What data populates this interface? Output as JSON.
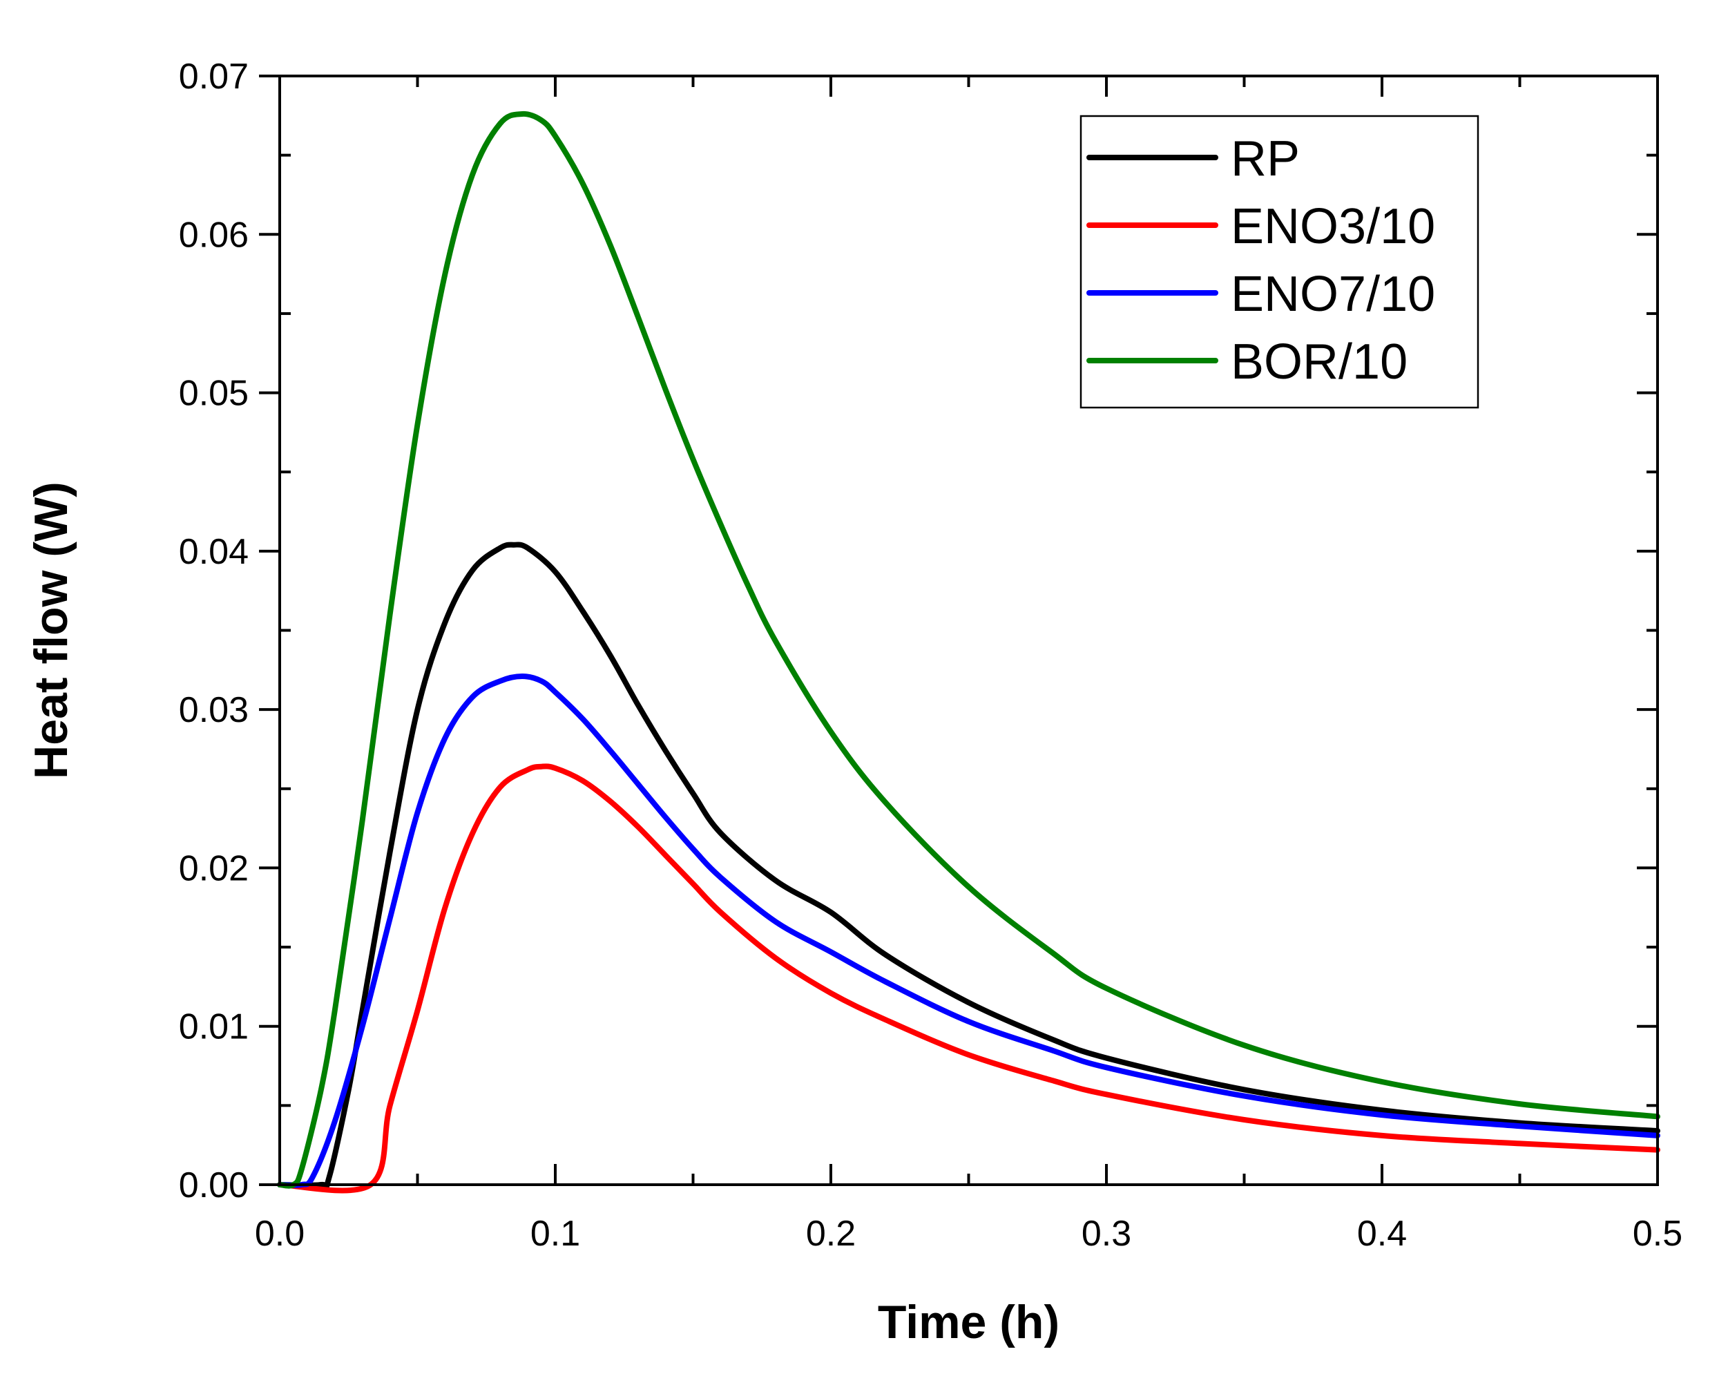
{
  "chart_data": {
    "type": "line",
    "title": "",
    "xlabel": "Time (h)",
    "ylabel": "Heat flow (W)",
    "xlim": [
      0,
      0.5
    ],
    "ylim": [
      0,
      0.07
    ],
    "x_ticks": [
      0.0,
      0.1,
      0.2,
      0.3,
      0.4,
      0.5
    ],
    "x_tick_labels": [
      "0.0",
      "0.1",
      "0.2",
      "0.3",
      "0.4",
      "0.5"
    ],
    "y_ticks": [
      0,
      0.01,
      0.02,
      0.03,
      0.04,
      0.05,
      0.06,
      0.07
    ],
    "y_tick_labels": [
      "0.00",
      "0.01",
      "0.02",
      "0.03",
      "0.04",
      "0.05",
      "0.06",
      "0.07"
    ],
    "grid": false,
    "legend_position": "top-right",
    "series": [
      {
        "name": "RP",
        "color": "#000000",
        "x": [
          0,
          0.015,
          0.018,
          0.025,
          0.03,
          0.04,
          0.05,
          0.06,
          0.07,
          0.08,
          0.085,
          0.09,
          0.1,
          0.11,
          0.12,
          0.13,
          0.14,
          0.15,
          0.16,
          0.18,
          0.2,
          0.22,
          0.25,
          0.28,
          0.3,
          0.35,
          0.4,
          0.45,
          0.5
        ],
        "y": [
          0,
          0,
          0.0005,
          0.006,
          0.011,
          0.021,
          0.03,
          0.0355,
          0.0388,
          0.0402,
          0.0404,
          0.0402,
          0.0387,
          0.0362,
          0.0334,
          0.0303,
          0.0274,
          0.0247,
          0.0222,
          0.0192,
          0.0172,
          0.0145,
          0.0115,
          0.0092,
          0.008,
          0.006,
          0.0047,
          0.0039,
          0.0034
        ]
      },
      {
        "name": "ENO3/10",
        "color": "#ff0000",
        "x": [
          0,
          0.033,
          0.04,
          0.05,
          0.06,
          0.07,
          0.08,
          0.09,
          0.095,
          0.1,
          0.11,
          0.12,
          0.13,
          0.14,
          0.15,
          0.16,
          0.18,
          0.2,
          0.22,
          0.25,
          0.28,
          0.3,
          0.35,
          0.4,
          0.45,
          0.5
        ],
        "y": [
          0,
          0,
          0.005,
          0.011,
          0.0175,
          0.0222,
          0.0251,
          0.0262,
          0.0264,
          0.0263,
          0.0255,
          0.0242,
          0.0226,
          0.0208,
          0.019,
          0.0172,
          0.0143,
          0.0121,
          0.0104,
          0.0082,
          0.0066,
          0.0057,
          0.0041,
          0.0031,
          0.0026,
          0.0022
        ]
      },
      {
        "name": "ENO7/10",
        "color": "#0000ff",
        "x": [
          0,
          0.008,
          0.012,
          0.02,
          0.03,
          0.04,
          0.05,
          0.06,
          0.07,
          0.08,
          0.088,
          0.095,
          0.1,
          0.11,
          0.12,
          0.13,
          0.14,
          0.15,
          0.16,
          0.18,
          0.2,
          0.22,
          0.25,
          0.28,
          0.3,
          0.35,
          0.4,
          0.45,
          0.5
        ],
        "y": [
          0,
          0,
          0.0005,
          0.004,
          0.01,
          0.0168,
          0.0235,
          0.0282,
          0.0308,
          0.0318,
          0.0321,
          0.0318,
          0.0311,
          0.0294,
          0.0274,
          0.0253,
          0.0232,
          0.0212,
          0.0194,
          0.0166,
          0.0147,
          0.0128,
          0.0103,
          0.0085,
          0.0074,
          0.0056,
          0.0044,
          0.0037,
          0.0031
        ]
      },
      {
        "name": "BOR/10",
        "color": "#008000",
        "x": [
          0,
          0.005,
          0.008,
          0.015,
          0.02,
          0.03,
          0.04,
          0.05,
          0.06,
          0.07,
          0.08,
          0.088,
          0.095,
          0.1,
          0.11,
          0.12,
          0.13,
          0.14,
          0.15,
          0.16,
          0.17,
          0.18,
          0.2,
          0.22,
          0.25,
          0.28,
          0.3,
          0.35,
          0.4,
          0.45,
          0.5
        ],
        "y": [
          0,
          0,
          0.001,
          0.006,
          0.011,
          0.023,
          0.036,
          0.048,
          0.0575,
          0.0638,
          0.067,
          0.0676,
          0.0672,
          0.0662,
          0.0632,
          0.0593,
          0.0548,
          0.0502,
          0.0458,
          0.0417,
          0.0378,
          0.0343,
          0.0286,
          0.0241,
          0.0188,
          0.0147,
          0.0124,
          0.0088,
          0.0065,
          0.0051,
          0.0043
        ]
      }
    ]
  }
}
